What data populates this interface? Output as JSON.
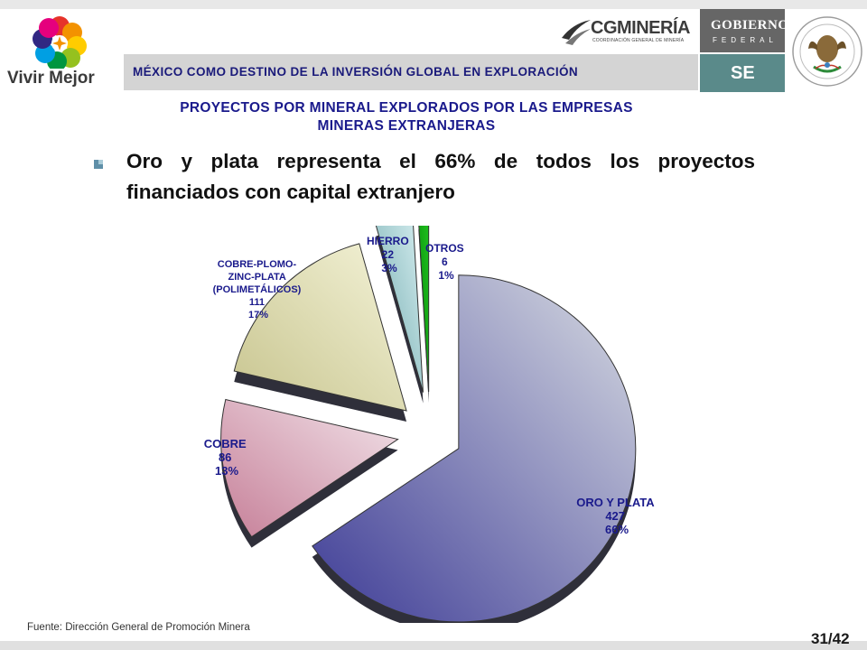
{
  "header": {
    "brand_caption": "Vivir Mejor",
    "banner_text": "MÉXICO COMO DESTINO DE LA INVERSIÓN GLOBAL EN EXPLORACIÓN",
    "cg_logo_text": "CGMINERÍA",
    "cg_logo_sub": "COORDINACIÓN GENERAL DE MINERÍA",
    "gobierno_title": "GOBIERNO",
    "gobierno_sub": "FEDERAL",
    "se_text": "SE",
    "colors": {
      "banner_text": "#1a1a7a",
      "se_box": "#5a8a8a",
      "gob_box": "#666666"
    }
  },
  "slide": {
    "title_line1": "PROYECTOS POR MINERAL EXPLORADOS POR LAS EMPRESAS",
    "title_line2": "MINERAS EXTRANJERAS",
    "headline": "Oro y plata representa el 66% de todos los proyectos financiados con capital extranjero",
    "source": "Fuente: Dirección General de Promoción Minera",
    "page_number": "31/42"
  },
  "chart_data": {
    "type": "pie",
    "exploded": true,
    "three_d": true,
    "slices": [
      {
        "name": "ORO Y PLATA",
        "value": 427,
        "percent": "66%",
        "color_light": "#d8dce2",
        "color_dark": "#3d3b96"
      },
      {
        "name": "COBRE",
        "value": 86,
        "percent": "13%",
        "color_light": "#f2e4ea",
        "color_dark": "#c67f98"
      },
      {
        "name_lines": [
          "COBRE-PLOMO-",
          "ZINC-PLATA",
          "(POLIMETÁLICOS)"
        ],
        "value": 111,
        "percent": "17%",
        "color_light": "#f4f3d8",
        "color_dark": "#c7c48e"
      },
      {
        "name": "HIERRO",
        "value": 22,
        "percent": "3%",
        "color_light": "#d6eef0",
        "color_dark": "#6fa9ad"
      },
      {
        "name": "OTROS",
        "value": 6,
        "percent": "1%",
        "color_light": "#1ec01e",
        "color_dark": "#0a8a0a"
      }
    ],
    "label_color": "#1a1a8c"
  }
}
